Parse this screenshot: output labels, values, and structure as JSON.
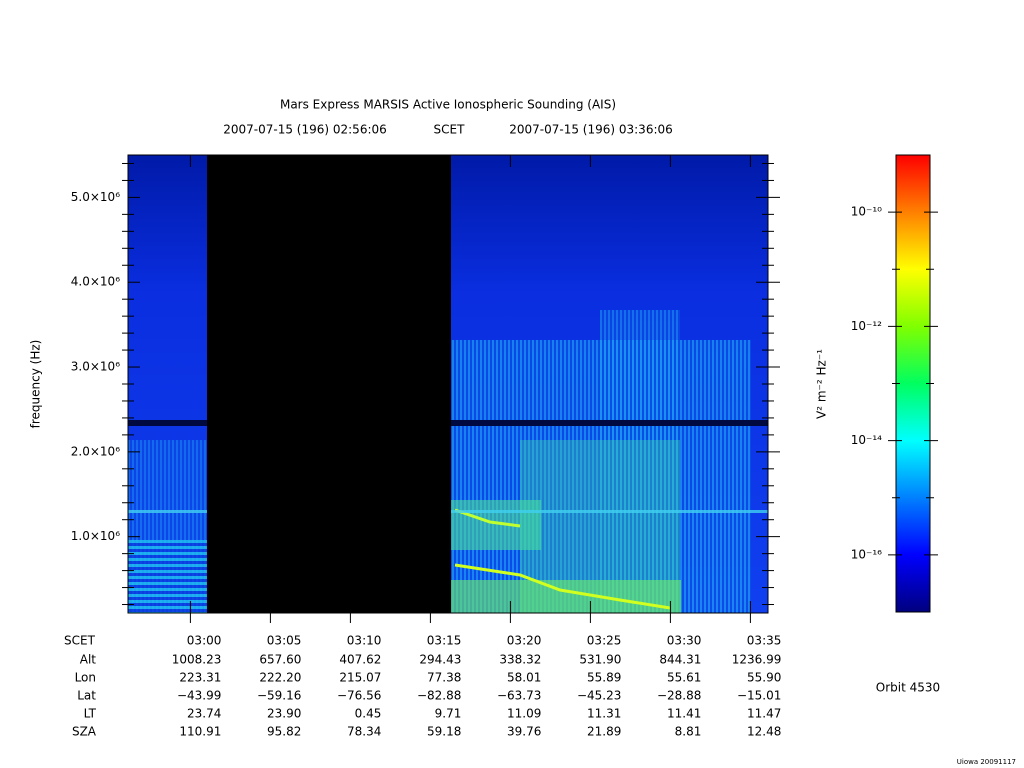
{
  "chart_data": {
    "type": "spectrogram",
    "title": "Mars Express MARSIS Active Ionospheric Sounding (AIS)",
    "start_time": "2007-07-15 (196) 02:56:06",
    "time_system": "SCET",
    "end_time": "2007-07-15 (196) 03:36:06",
    "ylabel": "frequency (Hz)",
    "xlim": [
      176.1,
      216.1
    ],
    "xticks": [
      {
        "value": 180,
        "label": "03:00"
      },
      {
        "value": 185,
        "label": "03:05"
      },
      {
        "value": 190,
        "label": "03:10"
      },
      {
        "value": 195,
        "label": "03:15"
      },
      {
        "value": 200,
        "label": "03:20"
      },
      {
        "value": 205,
        "label": "03:25"
      },
      {
        "value": 210,
        "label": "03:30"
      },
      {
        "value": 215,
        "label": "03:35"
      }
    ],
    "ylim": [
      100000,
      5500000
    ],
    "yticks": [
      {
        "value": 1000000,
        "label": "1.0×10⁶"
      },
      {
        "value": 2000000,
        "label": "2.0×10⁶"
      },
      {
        "value": 3000000,
        "label": "3.0×10⁶"
      },
      {
        "value": 4000000,
        "label": "4.0×10⁶"
      },
      {
        "value": 5000000,
        "label": "5.0×10⁶"
      }
    ],
    "yminor_ticks": [
      200000,
      400000,
      600000,
      800000,
      1200000,
      1400000,
      1600000,
      1800000,
      2200000,
      2400000,
      2600000,
      2800000,
      3200000,
      3400000,
      3600000,
      3800000,
      4200000,
      4400000,
      4600000,
      4800000,
      5200000,
      5400000
    ],
    "colorbar": {
      "label": "V² m⁻² Hz⁻¹",
      "log_scale": true,
      "zlim": [
        1e-17,
        1e-09
      ],
      "zticks": [
        {
          "value": 1e-10,
          "label": "10⁻¹⁰"
        },
        {
          "value": 1e-12,
          "label": "10⁻¹²"
        },
        {
          "value": 1e-14,
          "label": "10⁻¹⁴"
        },
        {
          "value": 1e-16,
          "label": "10⁻¹⁶"
        }
      ],
      "zminor_ticks": [
        1e-11,
        1e-13,
        1e-15
      ],
      "colors": [
        "#00007f",
        "#0000ff",
        "#0080ff",
        "#00ffff",
        "#00ff60",
        "#80ff00",
        "#ffff00",
        "#ff8000",
        "#ff0000"
      ]
    },
    "ephemeris": {
      "labels": [
        "SCET",
        "Alt",
        "Lon",
        "Lat",
        "LT",
        "SZA"
      ],
      "rows": [
        [
          "1008.23",
          "657.60",
          "407.62",
          "294.43",
          "338.32",
          "531.90",
          "844.31",
          "1236.99"
        ],
        [
          "223.31",
          "222.20",
          "215.07",
          "77.38",
          "58.01",
          "55.89",
          "55.61",
          "55.90"
        ],
        [
          "−43.99",
          "−59.16",
          "−76.56",
          "−82.88",
          "−63.73",
          "−45.23",
          "−28.88",
          "−15.01"
        ],
        [
          "23.74",
          "23.90",
          "0.45",
          "9.71",
          "11.09",
          "11.31",
          "11.41",
          "11.47"
        ],
        [
          "110.91",
          "95.82",
          "78.34",
          "59.18",
          "39.76",
          "21.89",
          "8.81",
          "12.48"
        ]
      ]
    },
    "orbit": "Orbit 4530",
    "credit": "Uiowa 20091117"
  }
}
